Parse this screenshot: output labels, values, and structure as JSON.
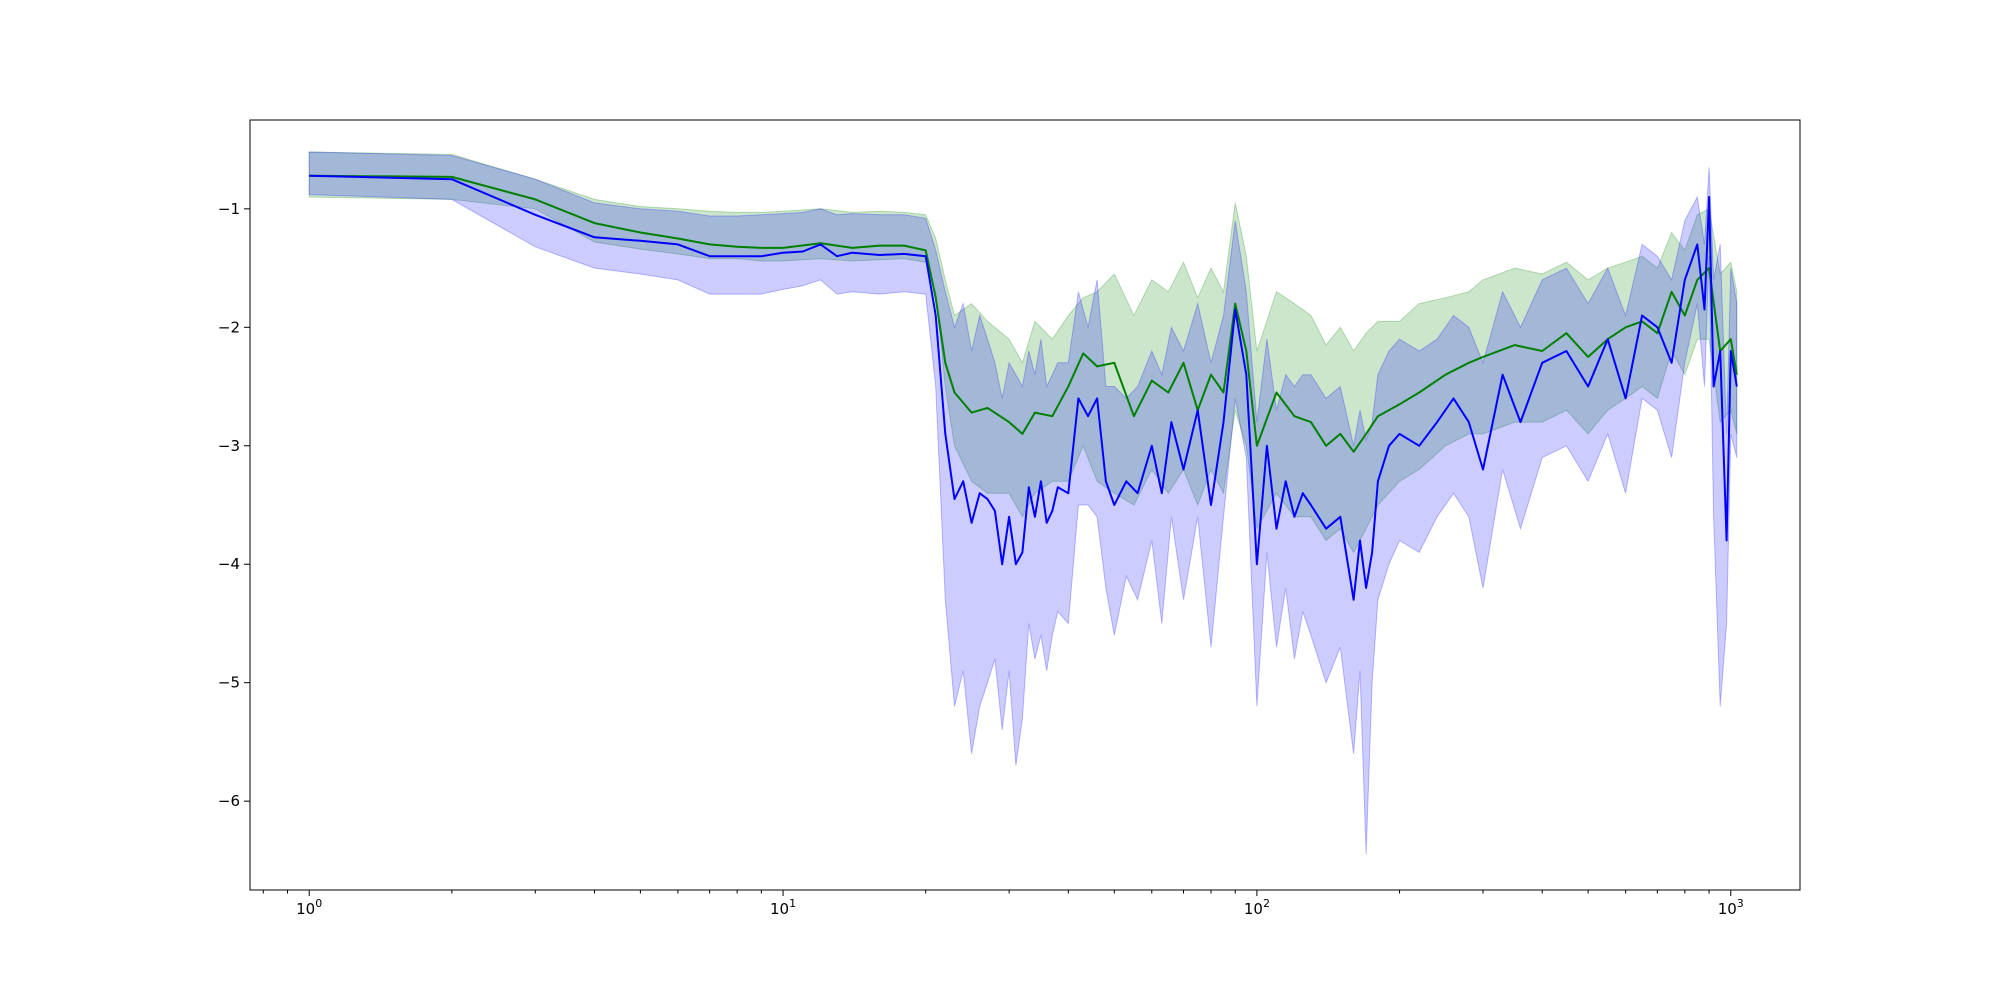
{
  "chart_data": {
    "type": "line",
    "title": "",
    "xlabel": "",
    "ylabel": "",
    "xscale": "log",
    "xlim": [
      0.75,
      1400
    ],
    "ylim": [
      -6.75,
      -0.25
    ],
    "grid": false,
    "legend": "none",
    "x_major_ticks": [
      {
        "value": 1,
        "base": "10",
        "exp": "0"
      },
      {
        "value": 10,
        "base": "10",
        "exp": "1"
      },
      {
        "value": 100,
        "base": "10",
        "exp": "2"
      },
      {
        "value": 1000,
        "base": "10",
        "exp": "3"
      }
    ],
    "y_ticks": [
      {
        "value": -1,
        "label": "−1"
      },
      {
        "value": -2,
        "label": "−2"
      },
      {
        "value": -3,
        "label": "−3"
      },
      {
        "value": -4,
        "label": "−4"
      },
      {
        "value": -5,
        "label": "−5"
      },
      {
        "value": -6,
        "label": "−6"
      }
    ],
    "series": [
      {
        "color": "#008000",
        "band_color": "#008000",
        "band_opacity": 0.2,
        "x": [
          1,
          2,
          3,
          4,
          5,
          6,
          7,
          8,
          9,
          10,
          12,
          14,
          16,
          18,
          20,
          21,
          22,
          23,
          25,
          27,
          30,
          32,
          34,
          37,
          40,
          43,
          46,
          50,
          55,
          60,
          65,
          70,
          75,
          80,
          85,
          90,
          95,
          100,
          110,
          120,
          130,
          140,
          150,
          160,
          170,
          180,
          200,
          220,
          250,
          280,
          300,
          350,
          400,
          450,
          500,
          550,
          600,
          650,
          700,
          750,
          800,
          850,
          900,
          950,
          1000,
          1030
        ],
        "y": [
          -0.72,
          -0.73,
          -0.92,
          -1.12,
          -1.2,
          -1.25,
          -1.3,
          -1.32,
          -1.33,
          -1.33,
          -1.29,
          -1.33,
          -1.31,
          -1.31,
          -1.35,
          -1.75,
          -2.3,
          -2.55,
          -2.72,
          -2.68,
          -2.8,
          -2.9,
          -2.72,
          -2.75,
          -2.5,
          -2.22,
          -2.33,
          -2.3,
          -2.75,
          -2.45,
          -2.55,
          -2.3,
          -2.7,
          -2.4,
          -2.55,
          -1.8,
          -2.2,
          -3.0,
          -2.55,
          -2.75,
          -2.8,
          -3.0,
          -2.9,
          -3.05,
          -2.9,
          -2.75,
          -2.65,
          -2.55,
          -2.4,
          -2.3,
          -2.25,
          -2.15,
          -2.2,
          -2.05,
          -2.25,
          -2.1,
          -2.0,
          -1.95,
          -2.05,
          -1.7,
          -1.9,
          -1.6,
          -1.5,
          -2.2,
          -2.1,
          -2.4
        ],
        "y_low": [
          -0.9,
          -0.92,
          -1.0,
          -1.28,
          -1.34,
          -1.38,
          -1.42,
          -1.42,
          -1.44,
          -1.44,
          -1.42,
          -1.44,
          -1.43,
          -1.42,
          -1.45,
          -1.7,
          -2.5,
          -3.0,
          -3.3,
          -3.4,
          -3.4,
          -3.6,
          -3.4,
          -3.3,
          -3.3,
          -3.0,
          -3.3,
          -3.4,
          -3.5,
          -3.2,
          -3.4,
          -3.2,
          -3.5,
          -3.2,
          -3.4,
          -2.7,
          -3.0,
          -3.7,
          -3.4,
          -3.6,
          -3.6,
          -3.8,
          -3.7,
          -3.9,
          -3.7,
          -3.5,
          -3.3,
          -3.2,
          -3.0,
          -2.9,
          -2.9,
          -2.8,
          -2.8,
          -2.7,
          -2.9,
          -2.7,
          -2.6,
          -2.5,
          -2.6,
          -2.2,
          -2.4,
          -2.1,
          -2.1,
          -2.8,
          -2.7,
          -2.9
        ],
        "y_high": [
          -0.52,
          -0.54,
          -0.75,
          -0.92,
          -0.98,
          -1.0,
          -1.02,
          -1.03,
          -1.03,
          -1.02,
          -1.0,
          -1.03,
          -1.02,
          -1.03,
          -1.05,
          -1.25,
          -1.6,
          -1.9,
          -1.8,
          -1.95,
          -2.1,
          -2.3,
          -1.95,
          -2.1,
          -1.9,
          -1.75,
          -1.7,
          -1.55,
          -1.9,
          -1.6,
          -1.7,
          -1.45,
          -1.75,
          -1.5,
          -1.7,
          -0.95,
          -1.4,
          -2.2,
          -1.7,
          -1.8,
          -1.9,
          -2.15,
          -2.0,
          -2.2,
          -2.05,
          -1.95,
          -1.95,
          -1.8,
          -1.75,
          -1.7,
          -1.6,
          -1.5,
          -1.55,
          -1.45,
          -1.6,
          -1.5,
          -1.45,
          -1.4,
          -1.5,
          -1.2,
          -1.35,
          -1.05,
          -1.0,
          -1.55,
          -1.45,
          -1.7
        ]
      },
      {
        "color": "#0000ff",
        "band_color": "#0000ff",
        "band_opacity": 0.2,
        "x": [
          1,
          2,
          3,
          4,
          5,
          6,
          7,
          8,
          9,
          10,
          11,
          12,
          13,
          14,
          16,
          18,
          20,
          21,
          22,
          23,
          24,
          25,
          26,
          27,
          28,
          29,
          30,
          31,
          32,
          33,
          34,
          35,
          36,
          37,
          38,
          40,
          42,
          44,
          46,
          48,
          50,
          53,
          56,
          60,
          63,
          66,
          70,
          75,
          80,
          85,
          90,
          95,
          100,
          105,
          110,
          115,
          120,
          125,
          130,
          140,
          150,
          160,
          165,
          170,
          175,
          180,
          190,
          200,
          220,
          240,
          260,
          280,
          300,
          330,
          360,
          400,
          450,
          500,
          550,
          600,
          650,
          700,
          750,
          800,
          850,
          880,
          900,
          920,
          950,
          980,
          1000,
          1030
        ],
        "y": [
          -0.72,
          -0.75,
          -1.05,
          -1.24,
          -1.27,
          -1.3,
          -1.4,
          -1.4,
          -1.4,
          -1.37,
          -1.36,
          -1.3,
          -1.4,
          -1.37,
          -1.39,
          -1.38,
          -1.4,
          -1.9,
          -2.9,
          -3.45,
          -3.3,
          -3.65,
          -3.4,
          -3.45,
          -3.55,
          -4.0,
          -3.6,
          -4.0,
          -3.9,
          -3.35,
          -3.6,
          -3.3,
          -3.65,
          -3.55,
          -3.35,
          -3.4,
          -2.6,
          -2.75,
          -2.6,
          -3.3,
          -3.5,
          -3.3,
          -3.4,
          -3.0,
          -3.4,
          -2.8,
          -3.2,
          -2.7,
          -3.5,
          -2.8,
          -1.85,
          -2.4,
          -4.0,
          -3.0,
          -3.7,
          -3.3,
          -3.6,
          -3.4,
          -3.5,
          -3.7,
          -3.6,
          -4.3,
          -3.8,
          -4.2,
          -3.9,
          -3.3,
          -3.0,
          -2.9,
          -3.0,
          -2.8,
          -2.6,
          -2.8,
          -3.2,
          -2.4,
          -2.8,
          -2.3,
          -2.2,
          -2.5,
          -2.1,
          -2.6,
          -1.9,
          -2.0,
          -2.3,
          -1.6,
          -1.3,
          -1.85,
          -0.9,
          -2.5,
          -2.2,
          -3.8,
          -2.2,
          -2.5
        ],
        "y_low": [
          -0.88,
          -0.92,
          -1.32,
          -1.5,
          -1.55,
          -1.6,
          -1.72,
          -1.72,
          -1.72,
          -1.68,
          -1.65,
          -1.6,
          -1.72,
          -1.7,
          -1.72,
          -1.7,
          -1.72,
          -2.5,
          -4.3,
          -5.2,
          -4.9,
          -5.6,
          -5.2,
          -5.0,
          -4.8,
          -5.4,
          -4.9,
          -5.7,
          -5.3,
          -4.5,
          -4.8,
          -4.6,
          -4.9,
          -4.6,
          -4.4,
          -4.5,
          -3.5,
          -3.5,
          -3.6,
          -4.2,
          -4.6,
          -4.1,
          -4.3,
          -3.8,
          -4.5,
          -3.6,
          -4.3,
          -3.6,
          -4.7,
          -3.6,
          -2.6,
          -3.1,
          -5.2,
          -3.9,
          -4.7,
          -4.2,
          -4.8,
          -4.4,
          -4.6,
          -5.0,
          -4.7,
          -5.6,
          -4.9,
          -6.45,
          -5.0,
          -4.3,
          -4.0,
          -3.8,
          -3.9,
          -3.6,
          -3.4,
          -3.6,
          -4.2,
          -3.2,
          -3.7,
          -3.1,
          -3.0,
          -3.3,
          -2.9,
          -3.4,
          -2.6,
          -2.7,
          -3.1,
          -2.3,
          -1.8,
          -2.5,
          -1.4,
          -3.6,
          -5.2,
          -4.5,
          -2.9,
          -3.1
        ],
        "y_high": [
          -0.52,
          -0.55,
          -0.75,
          -0.95,
          -1.0,
          -1.02,
          -1.06,
          -1.06,
          -1.05,
          -1.04,
          -1.03,
          -1.0,
          -1.05,
          -1.04,
          -1.05,
          -1.05,
          -1.08,
          -1.35,
          -1.7,
          -2.0,
          -1.8,
          -2.2,
          -1.9,
          -2.1,
          -2.3,
          -2.6,
          -2.3,
          -2.4,
          -2.5,
          -2.2,
          -2.4,
          -2.1,
          -2.5,
          -2.4,
          -2.3,
          -2.3,
          -1.7,
          -2.0,
          -1.6,
          -2.5,
          -2.5,
          -2.6,
          -2.5,
          -2.2,
          -2.4,
          -2.0,
          -2.2,
          -1.8,
          -2.3,
          -1.9,
          -1.1,
          -1.7,
          -2.8,
          -2.1,
          -2.7,
          -2.4,
          -2.5,
          -2.4,
          -2.4,
          -2.6,
          -2.5,
          -3.0,
          -2.7,
          -2.95,
          -2.8,
          -2.4,
          -2.2,
          -2.1,
          -2.2,
          -2.1,
          -1.9,
          -2.0,
          -2.3,
          -1.7,
          -2.0,
          -1.6,
          -1.5,
          -1.8,
          -1.5,
          -1.9,
          -1.3,
          -1.4,
          -1.6,
          -1.1,
          -0.9,
          -1.3,
          -0.65,
          -1.6,
          -1.3,
          -2.9,
          -1.5,
          -1.8
        ]
      }
    ]
  }
}
